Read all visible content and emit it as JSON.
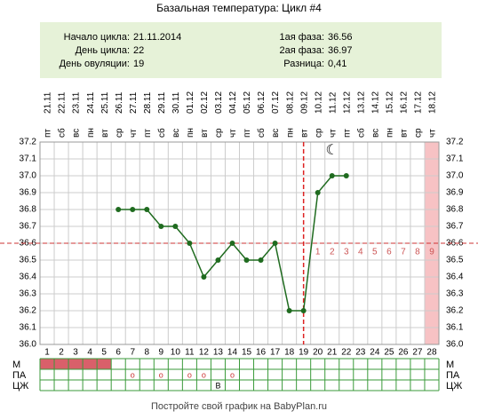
{
  "chart_data": {
    "type": "line",
    "title": "Базальная температура: Цикл #4",
    "info_left": [
      {
        "label": "Начало цикла:",
        "value": "21.11.2014"
      },
      {
        "label": "День цикла:",
        "value": "22"
      },
      {
        "label": "День овуляции:",
        "value": "19"
      }
    ],
    "info_right": [
      {
        "label": "1ая фаза:",
        "value": "36.56"
      },
      {
        "label": "2ая фаза:",
        "value": "36.97"
      },
      {
        "label": "Разница:",
        "value": "0,41"
      }
    ],
    "categories": [
      1,
      2,
      3,
      4,
      5,
      6,
      7,
      8,
      9,
      10,
      11,
      12,
      13,
      14,
      15,
      16,
      17,
      18,
      19,
      20,
      21,
      22,
      23,
      24,
      25,
      26,
      27,
      28
    ],
    "weekdays": [
      "пт",
      "сб",
      "вс",
      "пн",
      "вт",
      "ср",
      "чт",
      "пт",
      "сб",
      "вс",
      "пн",
      "вт",
      "ср",
      "чт",
      "пт",
      "сб",
      "вс",
      "пн",
      "вт",
      "ср",
      "чт",
      "пт",
      "сб",
      "вс",
      "пн",
      "вт",
      "ср",
      "чт"
    ],
    "dates": [
      "21.11",
      "22.11",
      "23.11",
      "24.11",
      "25.11",
      "26.11",
      "27.11",
      "28.11",
      "29.11",
      "30.11",
      "01.12",
      "02.12",
      "03.12",
      "04.12",
      "05.12",
      "06.12",
      "07.12",
      "08.12",
      "09.12",
      "10.12",
      "11.12",
      "12.12",
      "13.12",
      "14.12",
      "15.12",
      "16.12",
      "17.12",
      "18.12"
    ],
    "series": [
      {
        "name": "Температура",
        "color": "#1f6b1f",
        "values": [
          null,
          null,
          null,
          null,
          null,
          36.8,
          36.8,
          36.8,
          36.7,
          36.7,
          36.6,
          36.4,
          36.5,
          36.6,
          36.5,
          36.5,
          36.6,
          36.2,
          36.2,
          36.9,
          37.0,
          37.0,
          null,
          null,
          null,
          null,
          null,
          null
        ]
      }
    ],
    "ylim": [
      36.0,
      37.2
    ],
    "yticks": [
      {
        "value": 36,
        "label": "36.0"
      },
      36.1,
      36.2,
      36.3,
      36.4,
      36.5,
      36.6,
      36.7,
      36.8,
      36.9,
      {
        "value": 37,
        "label": "37.0"
      },
      37.1,
      37.2
    ],
    "grid": true,
    "coverline": 36.6,
    "ovulation_day": 19,
    "post_ovulation_labels": [
      1,
      2,
      3,
      4,
      5,
      6,
      7,
      8,
      9
    ],
    "highlight_day": 28,
    "moon": {
      "symbol": "☾",
      "day": 21
    },
    "rows": [
      {
        "label": "M",
        "fill_days": [
          1,
          2,
          3,
          4,
          5
        ],
        "color": "#d9606a"
      },
      {
        "label": "ПА",
        "symbol": "o",
        "days": [
          7,
          9,
          11,
          12,
          14
        ]
      },
      {
        "label": "ЦЖ",
        "symbol": "В",
        "days": [
          13
        ]
      }
    ],
    "footer": "Постройте свой график на BabyPlan.ru"
  }
}
